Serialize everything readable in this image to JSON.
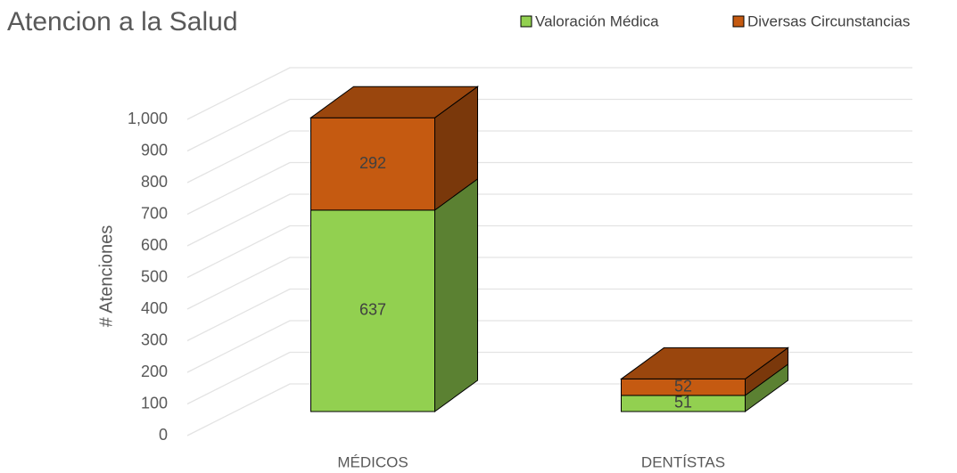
{
  "chart_data": {
    "type": "bar3d_stacked",
    "title": "Atencion a la Salud",
    "y_label": "# Atenciones",
    "categories": [
      "MÉDICOS",
      "DENTÍSTAS"
    ],
    "series": [
      {
        "name": "Valoración Médica",
        "color": "#92d050",
        "values": [
          637,
          51
        ]
      },
      {
        "name": "Diversas Circunstancias",
        "color": "#c55a11",
        "values": [
          292,
          52
        ]
      }
    ],
    "ylim": [
      0,
      1000
    ],
    "yticks": [
      0,
      100,
      200,
      300,
      400,
      500,
      600,
      700,
      800,
      900,
      {
        "value": 1000,
        "label": "1,000"
      }
    ],
    "grid": true,
    "legend": "top-right"
  }
}
